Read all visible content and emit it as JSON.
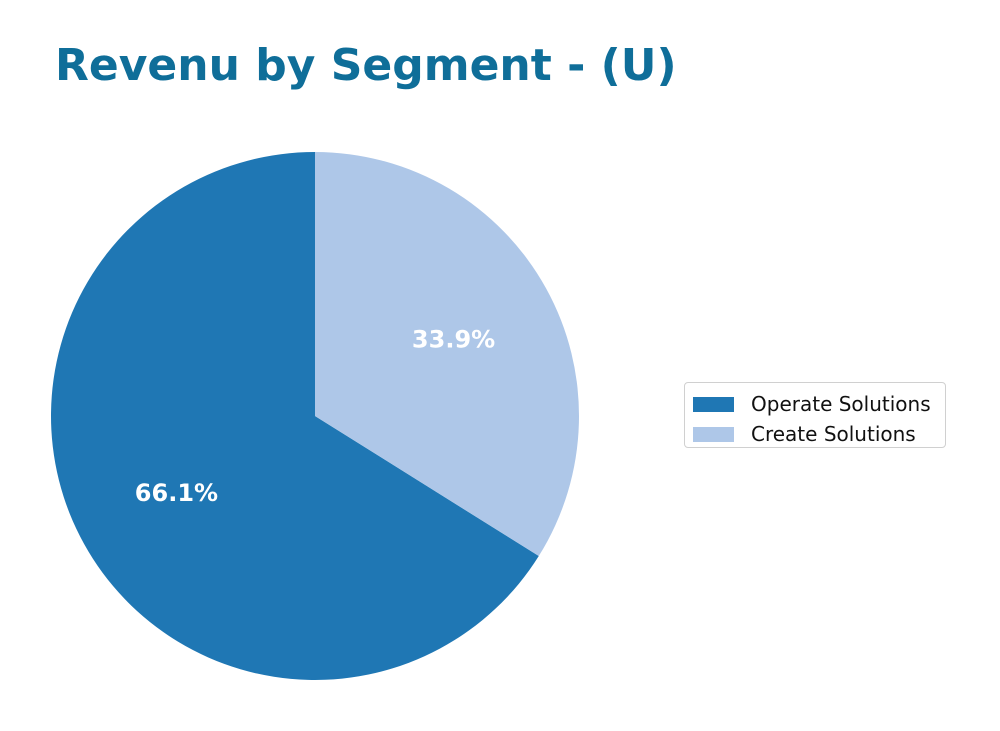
{
  "title": "Revenu by Segment - (U)",
  "colors": {
    "title": "#0f6e99",
    "operate": "#1f77b4",
    "create": "#aec7e8"
  },
  "chart_data": {
    "type": "pie",
    "title": "Revenu by Segment - (U)",
    "categories": [
      "Operate Solutions",
      "Create Solutions"
    ],
    "values": [
      66.1,
      33.9
    ],
    "labels": [
      "66.1%",
      "33.9%"
    ],
    "colors": [
      "#1f77b4",
      "#aec7e8"
    ],
    "start_angle": "top (12 o'clock), counter-clockwise",
    "legend_position": "right"
  },
  "legend": {
    "items": [
      {
        "label": "Operate Solutions",
        "color": "#1f77b4"
      },
      {
        "label": "Create Solutions",
        "color": "#aec7e8"
      }
    ]
  }
}
